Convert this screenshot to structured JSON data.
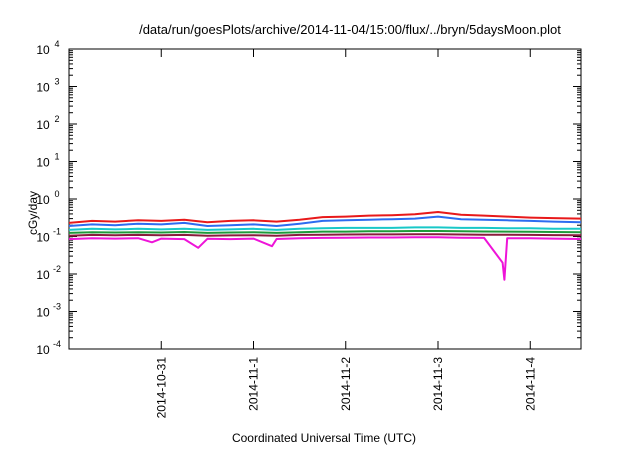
{
  "chart_data": {
    "type": "line",
    "title": "/data/run/goesPlots/archive/2014-11-04/15:00/flux/../bryn/5daysMoon.plot",
    "xlabel": "Coordinated Universal Time (UTC)",
    "ylabel": "cGy/day",
    "yscale": "log",
    "ylim_exponents": [
      -4,
      4
    ],
    "y_tick_base": "10",
    "y_ticks": [
      "-4",
      "-3",
      "-2",
      "-1",
      "0",
      "1",
      "2",
      "3",
      "4"
    ],
    "xlim_days": [
      0,
      5.55
    ],
    "x_tick_labels": [
      "2014-10-31",
      "2014-11-1",
      "2014-11-2",
      "2014-11-3",
      "2014-11-4"
    ],
    "x_tick_days": [
      1.0,
      2.0,
      3.0,
      4.0,
      5.0
    ],
    "grid": false,
    "legend": "none",
    "series": [
      {
        "color": "#e8191a",
        "x": [
          0,
          0.25,
          0.5,
          0.75,
          1.0,
          1.25,
          1.5,
          1.75,
          2.0,
          2.25,
          2.5,
          2.75,
          3.0,
          3.25,
          3.5,
          3.75,
          4.0,
          4.25,
          4.5,
          4.75,
          5.0,
          5.25,
          5.55
        ],
        "y": [
          0.23,
          0.26,
          0.25,
          0.27,
          0.26,
          0.28,
          0.24,
          0.26,
          0.27,
          0.25,
          0.28,
          0.33,
          0.34,
          0.36,
          0.37,
          0.39,
          0.45,
          0.38,
          0.36,
          0.34,
          0.32,
          0.31,
          0.3
        ]
      },
      {
        "color": "#2d6cf0",
        "x": [
          0,
          0.25,
          0.5,
          0.75,
          1.0,
          1.25,
          1.5,
          1.75,
          2.0,
          2.25,
          2.5,
          2.75,
          3.0,
          3.25,
          3.5,
          3.75,
          4.0,
          4.25,
          4.5,
          4.75,
          5.0,
          5.25,
          5.55
        ],
        "y": [
          0.19,
          0.21,
          0.2,
          0.22,
          0.21,
          0.23,
          0.19,
          0.2,
          0.21,
          0.19,
          0.22,
          0.26,
          0.27,
          0.28,
          0.29,
          0.3,
          0.34,
          0.29,
          0.28,
          0.27,
          0.26,
          0.25,
          0.24
        ]
      },
      {
        "color": "#18c8c8",
        "x": [
          0,
          0.25,
          0.5,
          0.75,
          1.0,
          1.25,
          1.5,
          1.75,
          2.0,
          2.25,
          2.5,
          2.75,
          3.0,
          3.25,
          3.5,
          3.75,
          4.0,
          4.25,
          4.5,
          4.75,
          5.0,
          5.25,
          5.55
        ],
        "y": [
          0.15,
          0.16,
          0.155,
          0.16,
          0.155,
          0.16,
          0.15,
          0.155,
          0.16,
          0.15,
          0.16,
          0.165,
          0.17,
          0.17,
          0.17,
          0.175,
          0.175,
          0.17,
          0.17,
          0.165,
          0.165,
          0.16,
          0.16
        ]
      },
      {
        "color": "#1f9a3a",
        "x": [
          0,
          0.25,
          0.5,
          0.75,
          1.0,
          1.25,
          1.5,
          1.75,
          2.0,
          2.25,
          2.5,
          2.75,
          3.0,
          3.25,
          3.5,
          3.75,
          4.0,
          4.25,
          4.5,
          4.75,
          5.0,
          5.25,
          5.55
        ],
        "y": [
          0.125,
          0.13,
          0.128,
          0.13,
          0.128,
          0.132,
          0.125,
          0.128,
          0.13,
          0.125,
          0.13,
          0.135,
          0.135,
          0.138,
          0.138,
          0.14,
          0.14,
          0.138,
          0.136,
          0.135,
          0.134,
          0.132,
          0.13
        ]
      },
      {
        "color": "#8a1c3c",
        "x": [
          0,
          0.25,
          0.5,
          0.75,
          1.0,
          1.25,
          1.5,
          1.75,
          2.0,
          2.25,
          2.5,
          2.75,
          3.0,
          3.25,
          3.5,
          3.75,
          4.0,
          4.25,
          4.5,
          4.75,
          5.0,
          5.25,
          5.55
        ],
        "y": [
          0.105,
          0.11,
          0.108,
          0.11,
          0.108,
          0.11,
          0.105,
          0.107,
          0.108,
          0.105,
          0.11,
          0.112,
          0.113,
          0.114,
          0.114,
          0.115,
          0.115,
          0.113,
          0.112,
          0.111,
          0.11,
          0.109,
          0.108
        ]
      },
      {
        "color": "#ee14d8",
        "x": [
          0,
          0.25,
          0.5,
          0.75,
          0.9,
          1.0,
          1.25,
          1.4,
          1.5,
          1.75,
          2.0,
          2.2,
          2.25,
          2.5,
          2.75,
          3.0,
          3.25,
          3.5,
          3.75,
          4.0,
          4.25,
          4.5,
          4.7,
          4.72,
          4.75,
          5.0,
          5.25,
          5.55
        ],
        "y": [
          0.085,
          0.09,
          0.088,
          0.09,
          0.07,
          0.088,
          0.085,
          0.05,
          0.087,
          0.085,
          0.088,
          0.055,
          0.086,
          0.09,
          0.092,
          0.093,
          0.094,
          0.094,
          0.095,
          0.095,
          0.093,
          0.092,
          0.02,
          0.007,
          0.09,
          0.09,
          0.088,
          0.086
        ]
      }
    ]
  }
}
